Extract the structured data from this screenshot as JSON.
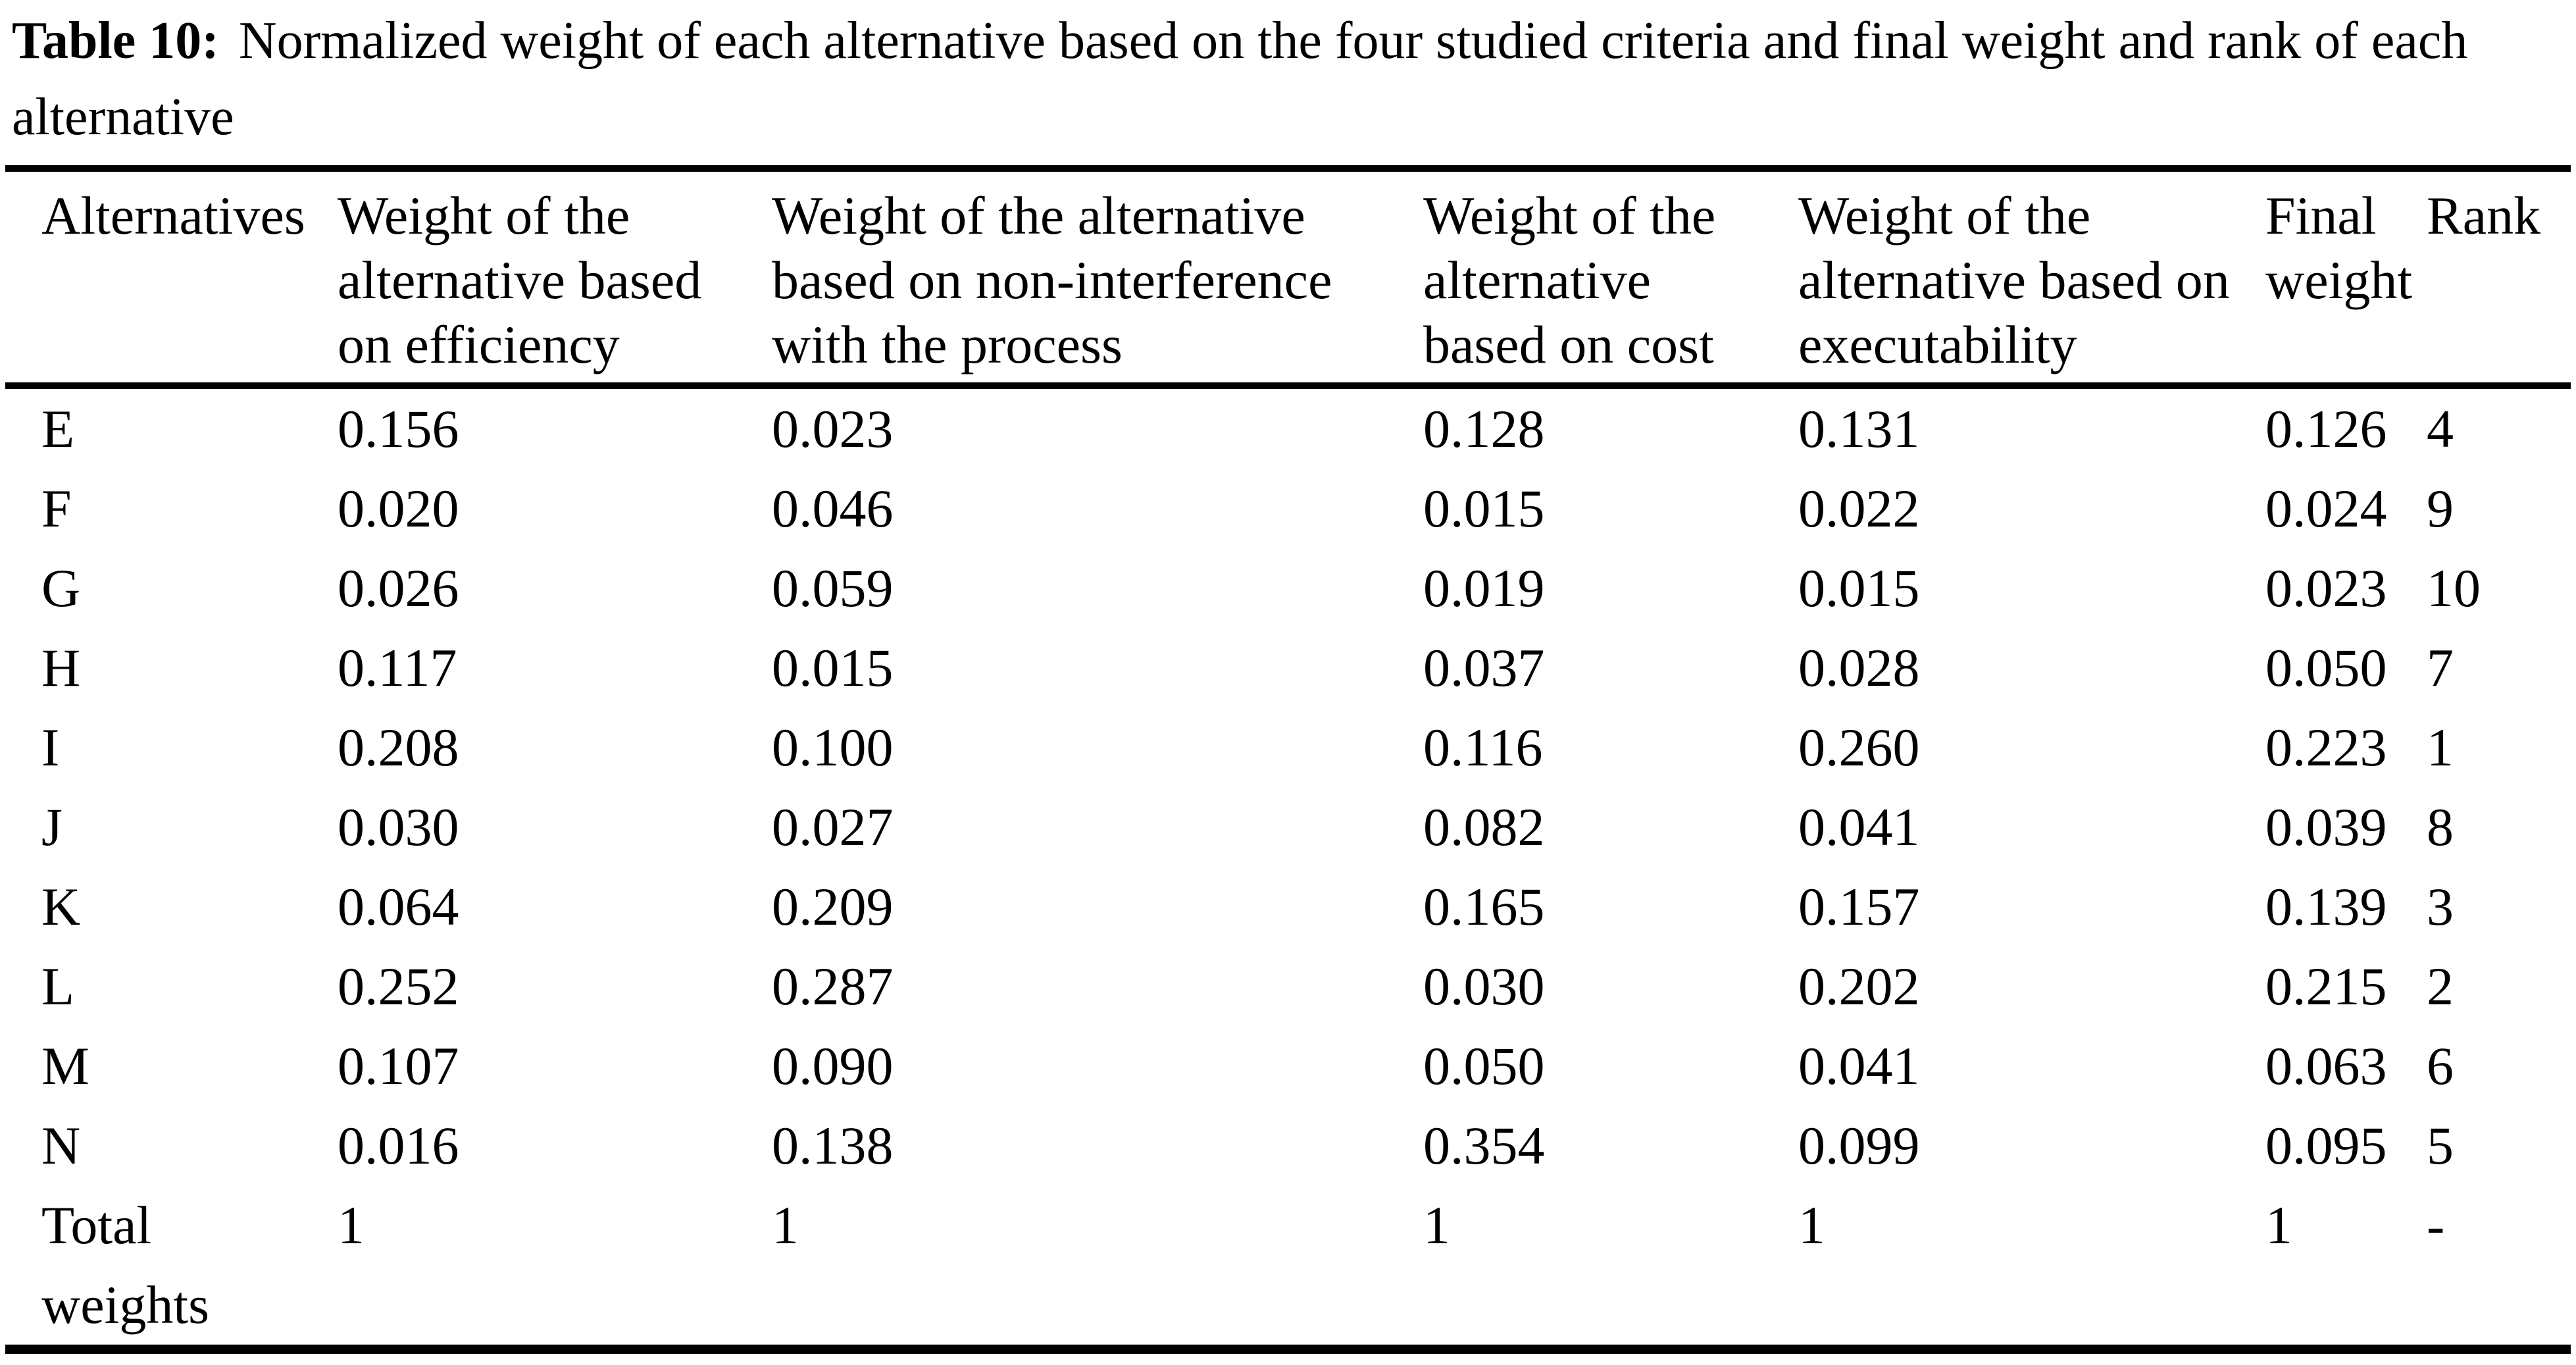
{
  "caption": {
    "label": "Table 10:",
    "text": "Normalized weight of each alternative based on the four studied criteria and final weight and rank of each alternative"
  },
  "table": {
    "columns": [
      "Alternatives",
      "Weight of the alternative based on efficiency",
      "Weight of the alternative based on non-interference with the process",
      "Weight of the alternative based on cost",
      "Weight of the alternative based on executability",
      "Final weight",
      "Rank"
    ],
    "rows": [
      [
        "E",
        "0.156",
        "0.023",
        "0.128",
        "0.131",
        "0.126",
        "4"
      ],
      [
        "F",
        "0.020",
        "0.046",
        "0.015",
        "0.022",
        "0.024",
        "9"
      ],
      [
        "G",
        "0.026",
        "0.059",
        "0.019",
        "0.015",
        "0.023",
        "10"
      ],
      [
        "H",
        "0.117",
        "0.015",
        "0.037",
        "0.028",
        "0.050",
        "7"
      ],
      [
        "I",
        "0.208",
        "0.100",
        "0.116",
        "0.260",
        "0.223",
        "1"
      ],
      [
        "J",
        "0.030",
        "0.027",
        "0.082",
        "0.041",
        "0.039",
        "8"
      ],
      [
        "K",
        "0.064",
        "0.209",
        "0.165",
        "0.157",
        "0.139",
        "3"
      ],
      [
        "L",
        "0.252",
        "0.287",
        "0.030",
        "0.202",
        "0.215",
        "2"
      ],
      [
        "M",
        "0.107",
        "0.090",
        "0.050",
        "0.041",
        "0.063",
        "6"
      ],
      [
        "N",
        "0.016",
        "0.138",
        "0.354",
        "0.099",
        "0.095",
        "5"
      ]
    ],
    "total_row": [
      "Total weights",
      "1",
      "1",
      "1",
      "1",
      "1",
      "-"
    ]
  }
}
